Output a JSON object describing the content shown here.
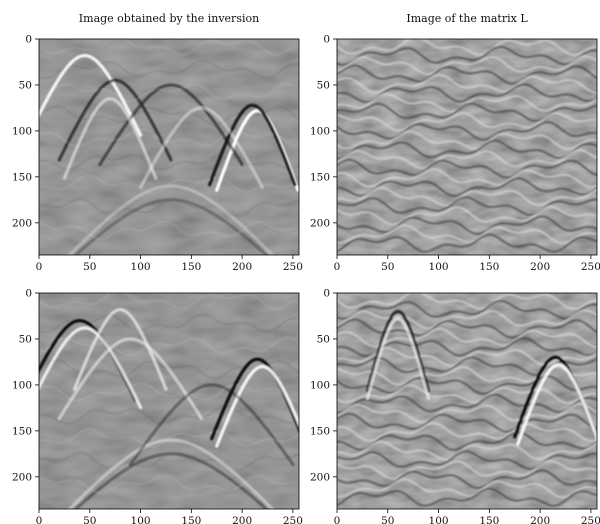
{
  "chart_data": [
    {
      "type": "heatmap",
      "title": "Image obtained by the inversion",
      "xlim": [
        0,
        256
      ],
      "ylim": [
        0,
        235
      ],
      "y_inverted": true,
      "xticks": [
        0,
        50,
        100,
        150,
        200,
        250
      ],
      "yticks": [
        0,
        50,
        100,
        150,
        200
      ],
      "colormap": "grayscale",
      "background": "#808080"
    },
    {
      "type": "heatmap",
      "title": "Image of the matrix L",
      "xlim": [
        0,
        256
      ],
      "ylim": [
        0,
        235
      ],
      "y_inverted": true,
      "xticks": [
        0,
        50,
        100,
        150,
        200,
        250
      ],
      "yticks": [
        0,
        50,
        100,
        150,
        200
      ],
      "colormap": "grayscale",
      "background": "#808080"
    },
    {
      "type": "heatmap",
      "title": "",
      "xlim": [
        0,
        256
      ],
      "ylim": [
        0,
        235
      ],
      "y_inverted": true,
      "xticks": [
        0,
        50,
        100,
        150,
        200,
        250
      ],
      "yticks": [
        0,
        50,
        100,
        150,
        200
      ],
      "colormap": "grayscale",
      "background": "#808080"
    },
    {
      "type": "heatmap",
      "title": "",
      "xlim": [
        0,
        256
      ],
      "ylim": [
        0,
        235
      ],
      "y_inverted": true,
      "xticks": [
        0,
        50,
        100,
        150,
        200,
        250
      ],
      "yticks": [
        0,
        50,
        100,
        150,
        200
      ],
      "colormap": "grayscale",
      "background": "#808080"
    }
  ]
}
